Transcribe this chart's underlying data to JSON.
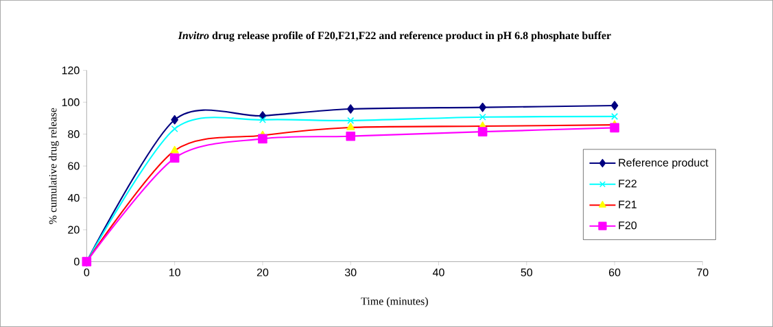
{
  "chart_data": {
    "type": "line",
    "title": "*Invitro* drug release profile of F20,F21,F22 and reference product in pH 6.8 phosphate buffer",
    "xlabel": "Time (minutes)",
    "ylabel": "% cumulative drug release",
    "x": [
      0,
      10,
      20,
      30,
      45,
      60
    ],
    "xlim": [
      0,
      70
    ],
    "xticks": [
      0,
      10,
      20,
      30,
      40,
      50,
      60,
      70
    ],
    "ylim": [
      0,
      120
    ],
    "yticks": [
      0,
      20,
      40,
      60,
      80,
      100,
      120
    ],
    "grid": false,
    "legend": "right",
    "series": [
      {
        "name": "Reference product",
        "color": "#000080",
        "marker": "diamond",
        "values": [
          0,
          89,
          91.5,
          95.8,
          96.8,
          97.9
        ]
      },
      {
        "name": "F22",
        "color": "#00ffff",
        "marker": "cross",
        "values": [
          0,
          83.3,
          89,
          88.5,
          90.7,
          91.1
        ]
      },
      {
        "name": "F21",
        "color": "#ff0000",
        "marker": "triangle",
        "colors": [
          "#ffff00",
          "#ffff00",
          "#ffff00",
          "#ffff00",
          "#ffff00",
          "#ffff00"
        ],
        "values": [
          0,
          69.7,
          79.2,
          84.2,
          85,
          85.8
        ]
      },
      {
        "name": "F20",
        "color": "#ff00ff",
        "marker": "square",
        "values": [
          0,
          65,
          77.1,
          78.7,
          81.5,
          84
        ]
      }
    ]
  }
}
